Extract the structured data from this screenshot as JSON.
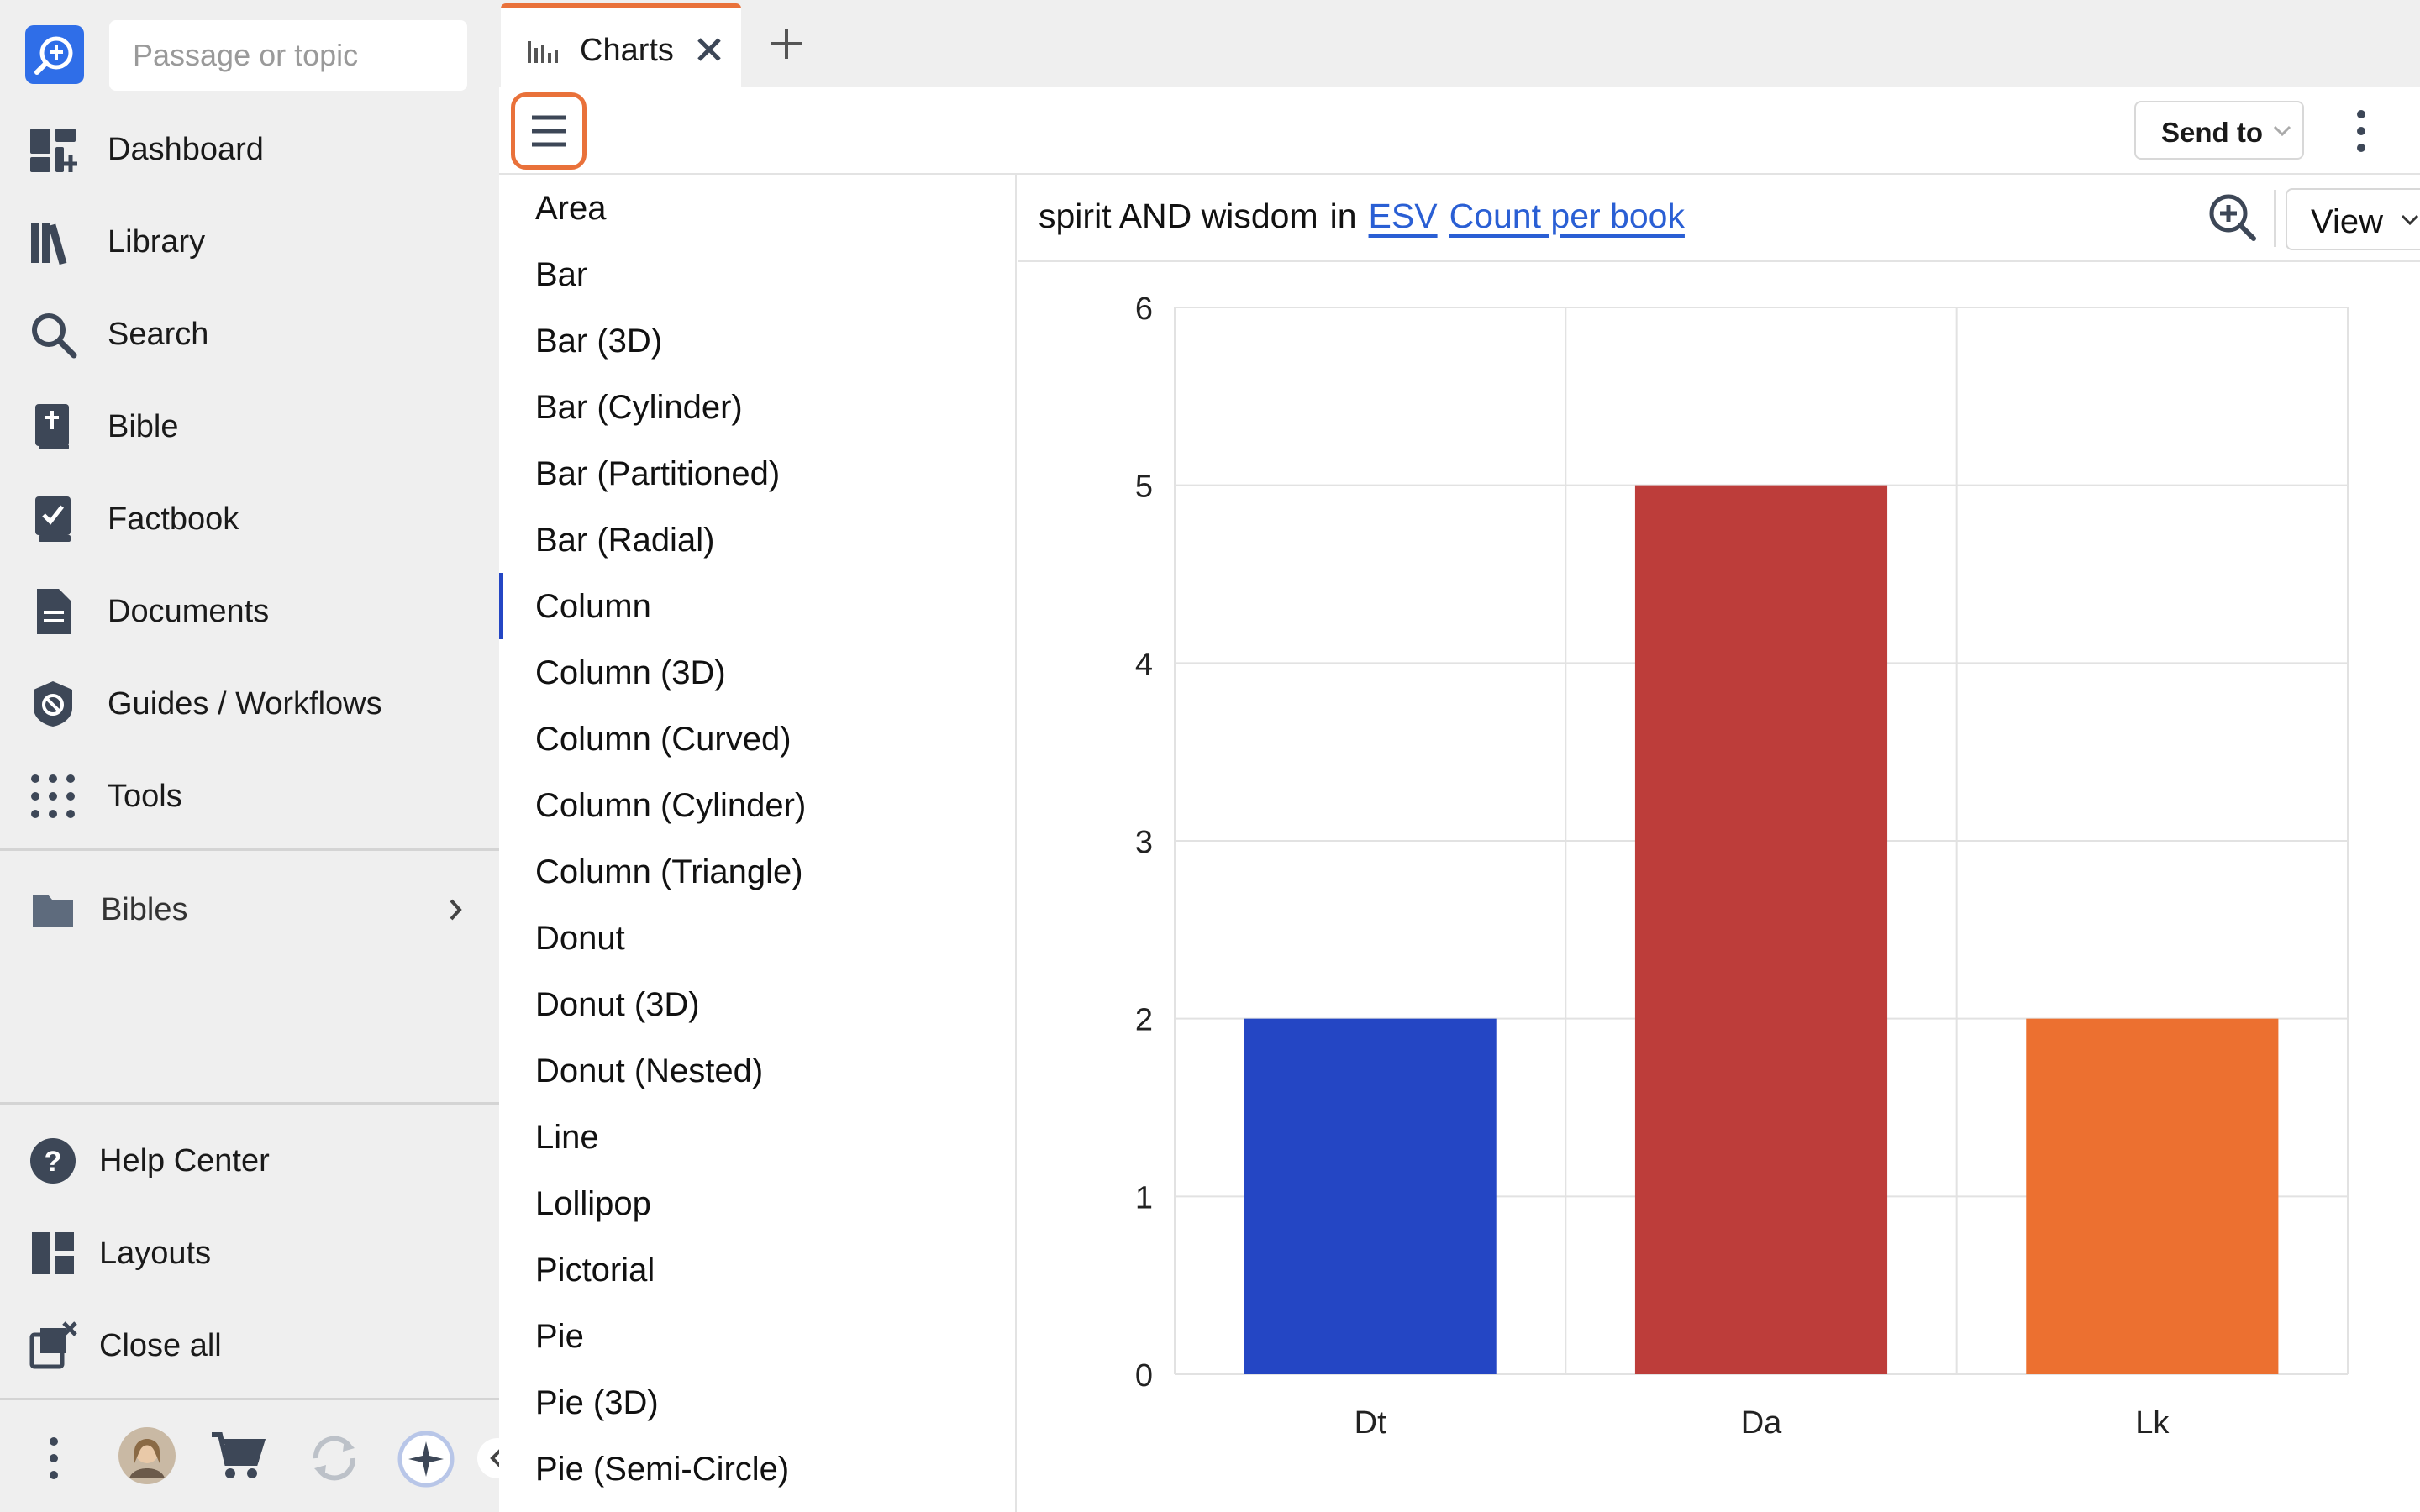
{
  "search": {
    "placeholder": "Passage or topic"
  },
  "sidebar": {
    "items": [
      {
        "label": "Dashboard",
        "icon": "dashboard-icon"
      },
      {
        "label": "Library",
        "icon": "library-icon"
      },
      {
        "label": "Search",
        "icon": "search-icon"
      },
      {
        "label": "Bible",
        "icon": "bible-icon"
      },
      {
        "label": "Factbook",
        "icon": "factbook-icon"
      },
      {
        "label": "Documents",
        "icon": "documents-icon"
      },
      {
        "label": "Guides / Workflows",
        "icon": "guides-icon"
      },
      {
        "label": "Tools",
        "icon": "tools-grid-icon"
      }
    ],
    "folder": {
      "label": "Bibles",
      "icon": "folder-icon"
    },
    "bottom_items": [
      {
        "label": "Help Center",
        "icon": "help-icon"
      },
      {
        "label": "Layouts",
        "icon": "layouts-icon"
      },
      {
        "label": "Close all",
        "icon": "close-all-icon"
      }
    ]
  },
  "tabs": [
    {
      "label": "Charts",
      "icon": "chart-bars-icon",
      "active": true
    }
  ],
  "toolbar": {
    "send_to_label": "Send to"
  },
  "chart_types": [
    "Area",
    "Bar",
    "Bar (3D)",
    "Bar (Cylinder)",
    "Bar (Partitioned)",
    "Bar (Radial)",
    "Column",
    "Column (3D)",
    "Column (Curved)",
    "Column (Cylinder)",
    "Column (Triangle)",
    "Donut",
    "Donut (3D)",
    "Donut (Nested)",
    "Line",
    "Lollipop",
    "Pictorial",
    "Pie",
    "Pie (3D)",
    "Pie (Semi-Circle)"
  ],
  "selected_chart_type": "Column",
  "query": {
    "text": "spirit AND wisdom",
    "connector": "in",
    "version_link": "ESV",
    "measure_link": "Count per book"
  },
  "view_label": "View",
  "colors": {
    "accent": "#e9713a",
    "link": "#2a5fd4",
    "selected_indicator": "#2446c4"
  },
  "chart_data": {
    "type": "bar",
    "categories": [
      "Dt",
      "Da",
      "Lk"
    ],
    "values": [
      2,
      5,
      2
    ],
    "colors": [
      "#2446c4",
      "#bd3d3a",
      "#ec7030"
    ],
    "ylim": [
      0,
      6
    ],
    "yticks": [
      0,
      1,
      2,
      3,
      4,
      5,
      6
    ],
    "title": "",
    "xlabel": "",
    "ylabel": "",
    "grid": true
  }
}
